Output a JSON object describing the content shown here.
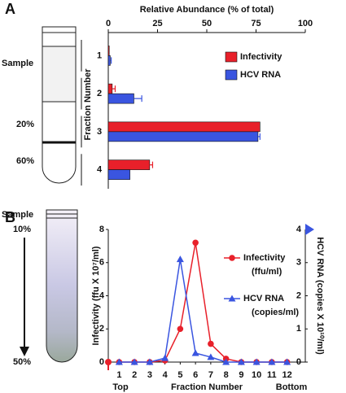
{
  "chart_data": [
    {
      "type": "hbar",
      "panel_label": "A",
      "xlabel": "Relative Abundance (% of total)",
      "ylabel": "Fraction Number",
      "categories": [
        "1",
        "2",
        "3",
        "4"
      ],
      "series": [
        {
          "name": "Infectivity",
          "color": "#e8202a",
          "values": [
            0.5,
            2,
            77,
            21
          ],
          "errors": [
            0,
            1.5,
            0,
            1.5
          ]
        },
        {
          "name": "HCV RNA",
          "color": "#3a55e0",
          "values": [
            1,
            13,
            76,
            11
          ],
          "errors": [
            0.5,
            4,
            1,
            0
          ]
        }
      ],
      "xlim": [
        0,
        100
      ],
      "xticks": [
        0,
        25,
        50,
        75,
        100
      ],
      "legend": "upper right",
      "annotations": [
        "Sample",
        "20%",
        "60%"
      ]
    },
    {
      "type": "line",
      "panel_label": "B",
      "xlabel": "Fraction Number",
      "x_end_labels": [
        "Top",
        "Bottom"
      ],
      "ylabel": "Infectivity (ffu X 10⁷/ml)",
      "y2label": "HCV RNA (copies X 10¹⁰/ml)",
      "categories": [
        "1",
        "2",
        "3",
        "4",
        "5",
        "6",
        "7",
        "8",
        "9",
        "10",
        "11",
        "12"
      ],
      "series": [
        {
          "name": "Infectivity",
          "unit": "(ffu/ml)",
          "color": "#e8202a",
          "marker": "circle",
          "values": [
            0,
            0,
            0,
            0.1,
            2,
            7.2,
            1.1,
            0.2,
            0,
            0,
            0,
            0
          ]
        },
        {
          "name": "HCV RNA",
          "unit": "(copies/ml)",
          "color": "#3a55e0",
          "marker": "triangle",
          "axis": "y2",
          "values": [
            0,
            0,
            0,
            0.12,
            3.1,
            0.27,
            0.15,
            0,
            0,
            0,
            0,
            0
          ]
        }
      ],
      "ylim": [
        0,
        8
      ],
      "yticks": [
        0,
        2,
        4,
        6,
        8
      ],
      "y2lim": [
        0,
        4
      ],
      "y2ticks": [
        0,
        1,
        2,
        3,
        4
      ],
      "legend": "upper right",
      "annotations": [
        "Sample",
        "10%",
        "50%"
      ]
    }
  ]
}
